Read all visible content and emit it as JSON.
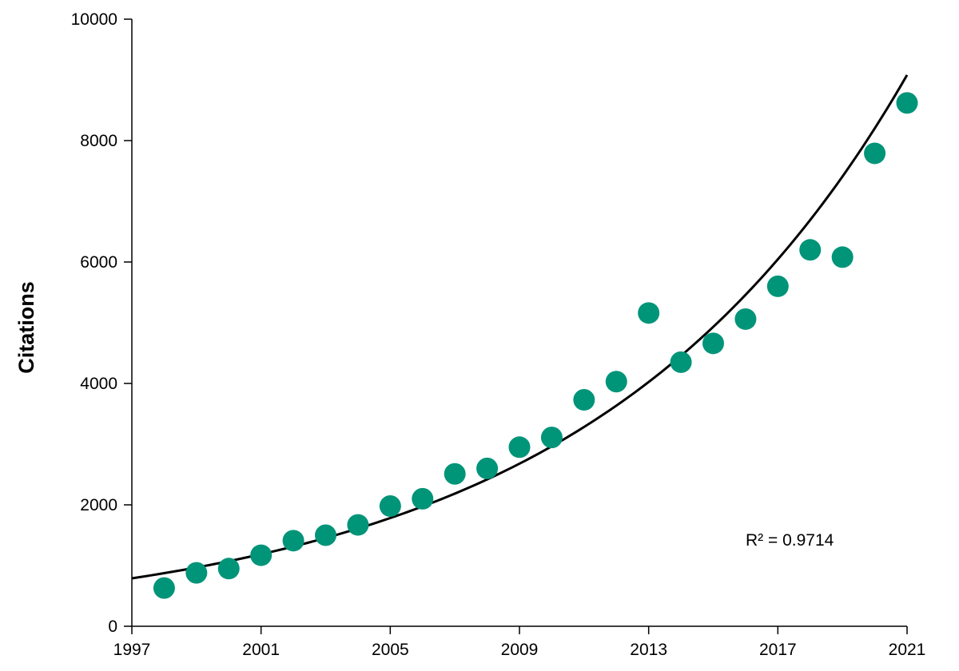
{
  "chart_data": {
    "type": "scatter",
    "title": "",
    "xlabel": "",
    "ylabel": "Citations",
    "xlim": [
      1997,
      2021
    ],
    "ylim": [
      0,
      10000
    ],
    "xticks": [
      "1997",
      "2001",
      "2005",
      "2009",
      "2013",
      "2017",
      "2021"
    ],
    "yticks": [
      "0",
      "2000",
      "4000",
      "6000",
      "8000",
      "10000"
    ],
    "grid": false,
    "legend": "none",
    "marker_color": "#009479",
    "trendline_color": "#000000",
    "series": [
      {
        "x": [
          1998,
          1999,
          2000,
          2001,
          2002,
          2003,
          2004,
          2005,
          2006,
          2007,
          2008,
          2009,
          2010,
          2011,
          2012,
          2013,
          2014,
          2015,
          2016,
          2017,
          2018,
          2019,
          2020,
          2021
        ],
        "y": [
          630,
          880,
          950,
          1170,
          1410,
          1500,
          1670,
          1980,
          2100,
          2510,
          2600,
          2950,
          3110,
          3730,
          4030,
          5160,
          4350,
          4660,
          5060,
          5600,
          6200,
          6080,
          7790,
          8620
        ]
      }
    ],
    "trendline": {
      "type": "exponential",
      "x_start": 1997,
      "x_end": 2021,
      "y_start": 790,
      "y_end": 9080
    },
    "annotations": [
      {
        "text": "R² = 0.9714"
      }
    ]
  }
}
